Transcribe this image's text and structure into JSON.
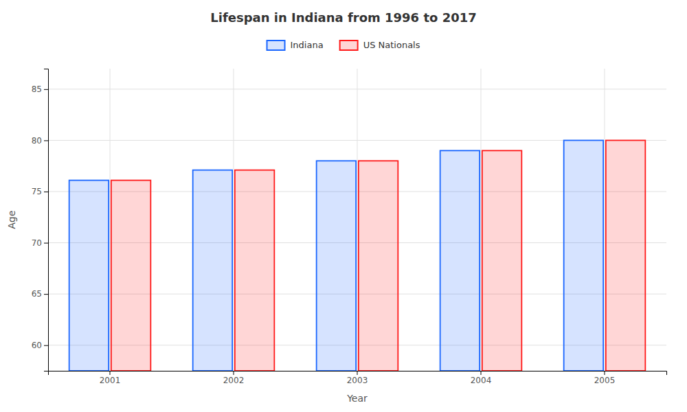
{
  "chart_data": {
    "type": "bar",
    "title": "Lifespan in Indiana from 1996 to 2017",
    "xlabel": "Year",
    "ylabel": "Age",
    "categories": [
      "2001",
      "2002",
      "2003",
      "2004",
      "2005"
    ],
    "series": [
      {
        "name": "Indiana",
        "color": "#1a66ff",
        "values": [
          76.1,
          77.1,
          78.0,
          79.0,
          80.0
        ]
      },
      {
        "name": "US Nationals",
        "color": "#ff1a1a",
        "values": [
          76.1,
          77.1,
          78.0,
          79.0,
          80.0
        ]
      }
    ],
    "ylim": [
      57.5,
      87
    ],
    "yticks": [
      60,
      65,
      70,
      75,
      80,
      85
    ],
    "grid": true,
    "legend": "top"
  }
}
